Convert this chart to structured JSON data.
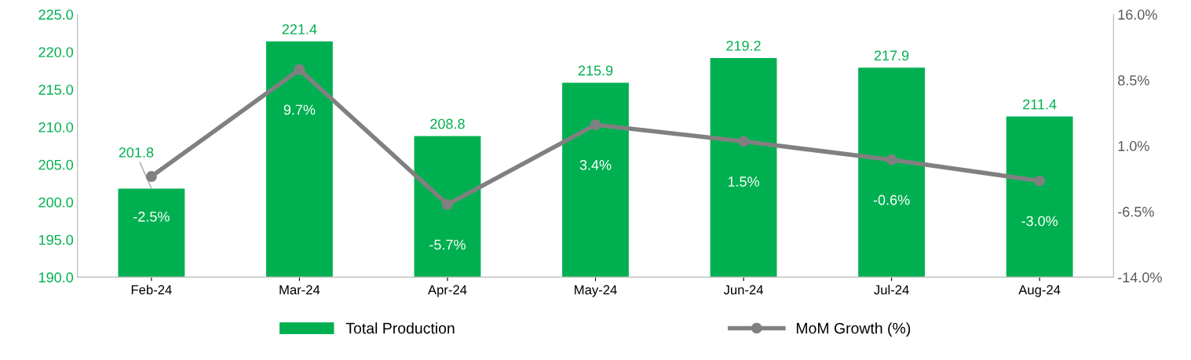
{
  "chart_data": {
    "type": "bar",
    "categories": [
      "Feb-24",
      "Mar-24",
      "Apr-24",
      "May-24",
      "Jun-24",
      "Jul-24",
      "Aug-24"
    ],
    "series": [
      {
        "name": "Total Production",
        "color": "#00b050",
        "values": [
          201.8,
          221.4,
          208.8,
          215.9,
          219.2,
          217.9,
          211.4
        ]
      },
      {
        "name": "MoM Growth (%)",
        "type": "line",
        "axis": "y2",
        "color": "#808080",
        "marker": "circle",
        "values": [
          -2.5,
          9.7,
          -5.7,
          3.4,
          1.5,
          -0.6,
          -3.0
        ],
        "value_labels": [
          "-2.5%",
          "9.7%",
          "-5.7%",
          "3.4%",
          "1.5%",
          "-0.6%",
          "-3.0%"
        ]
      }
    ],
    "ylim": [
      190,
      225
    ],
    "yticks": [
      {
        "value": 190,
        "label": "190.0"
      },
      {
        "value": 195,
        "label": "195.0"
      },
      {
        "value": 200,
        "label": "200.0"
      },
      {
        "value": 205,
        "label": "205.0"
      },
      {
        "value": 210,
        "label": "210.0"
      },
      {
        "value": 215,
        "label": "215.0"
      },
      {
        "value": 220,
        "label": "220.0"
      },
      {
        "value": 225,
        "label": "225.0"
      }
    ],
    "y2lim": [
      -14,
      16
    ],
    "y2ticks": [
      {
        "value": -14,
        "label": "-14.0%"
      },
      {
        "value": -6.5,
        "label": "-6.5%"
      },
      {
        "value": 1,
        "label": "1.0%"
      },
      {
        "value": 8.5,
        "label": "8.5%"
      },
      {
        "value": 16,
        "label": "16.0%"
      }
    ],
    "data_labels": true,
    "grid": false,
    "legend": "bottom"
  }
}
